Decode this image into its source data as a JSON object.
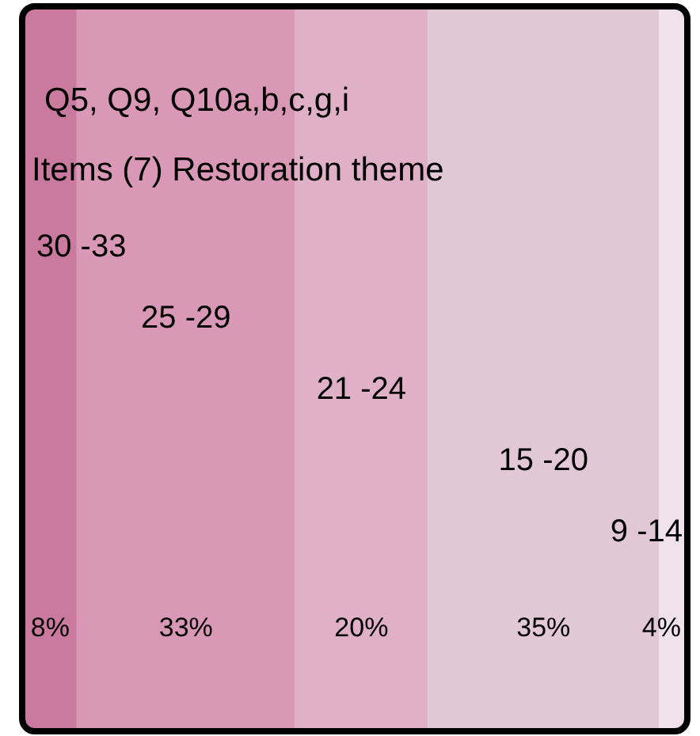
{
  "chart_data": {
    "type": "bar",
    "orientation": "horizontal",
    "stacked": true,
    "title": "Q5, Q9, Q10a,b,c,g,i",
    "subtitle": "Items (7) Restoration theme",
    "categories": [
      null
    ],
    "series": [
      {
        "name": "30 -33",
        "color": "#cb7a9f",
        "values": [
          8
        ],
        "value_labels": [
          "8%"
        ]
      },
      {
        "name": "25 -29",
        "color": "#da98b7",
        "values": [
          33
        ],
        "value_labels": [
          "33%"
        ]
      },
      {
        "name": "21 -24",
        "color": "#dfb0c6",
        "values": [
          20
        ],
        "value_labels": [
          "20%"
        ]
      },
      {
        "name": "15 -20",
        "color": "#e2c8d5",
        "values": [
          35
        ],
        "value_labels": [
          "35%"
        ]
      },
      {
        "name": "9 -14",
        "color": "#f0e2ea",
        "values": [
          4
        ],
        "value_labels": [
          "4%"
        ]
      }
    ]
  }
}
